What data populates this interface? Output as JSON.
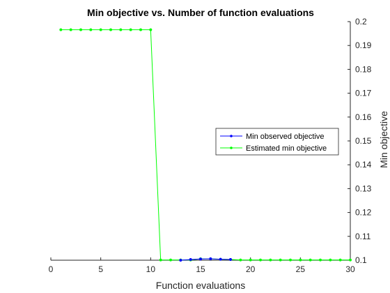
{
  "chart_data": {
    "type": "line",
    "title": "Min objective vs. Number of function evaluations",
    "xlabel": "Function evaluations",
    "ylabel": "Min objective",
    "xlim": [
      0,
      30
    ],
    "ylim": [
      0.1,
      0.2
    ],
    "xticks": [
      0,
      5,
      10,
      15,
      20,
      25,
      30
    ],
    "yticks": [
      0.1,
      0.11,
      0.12,
      0.13,
      0.14,
      0.15,
      0.16,
      0.17,
      0.18,
      0.19,
      0.2
    ],
    "y_axis_side": "right",
    "grid": false,
    "legend_position": "right",
    "series": [
      {
        "name": "Min observed objective",
        "color": "#0000ff",
        "marker": "circle",
        "x": [
          13,
          14,
          15,
          16,
          17,
          18
        ],
        "y": [
          0.1,
          0.1003,
          0.1005,
          0.1006,
          0.1004,
          0.1003
        ]
      },
      {
        "name": "Estimated min objective",
        "color": "#00ff00",
        "marker": "circle",
        "x": [
          1,
          2,
          3,
          4,
          5,
          6,
          7,
          8,
          9,
          10,
          11,
          12,
          13,
          14,
          15,
          16,
          17,
          18,
          19,
          20,
          21,
          22,
          23,
          24,
          25,
          26,
          27,
          28,
          29,
          30
        ],
        "y": [
          0.1966,
          0.1966,
          0.1966,
          0.1966,
          0.1966,
          0.1966,
          0.1966,
          0.1966,
          0.1966,
          0.1966,
          0.1001,
          0.1001,
          0.1001,
          0.1001,
          0.1006,
          0.1006,
          0.1004,
          0.1003,
          0.1001,
          0.1001,
          0.1001,
          0.1001,
          0.1001,
          0.1001,
          0.1001,
          0.1001,
          0.1001,
          0.1001,
          0.1001,
          0.1001
        ]
      }
    ]
  }
}
